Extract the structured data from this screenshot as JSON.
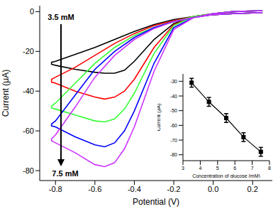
{
  "chart_data": [
    {
      "type": "line",
      "x_label": "Potential (V)",
      "y_label": "Current (μA)",
      "xlim": [
        -0.88,
        0.3
      ],
      "xticks": [
        -0.8,
        -0.6,
        -0.4,
        -0.2,
        {
          "value": 0,
          "label": "0.0"
        },
        0.2
      ],
      "ylim": [
        -85,
        3
      ],
      "yticks": [
        -80,
        -60,
        -40,
        -20,
        0
      ],
      "grid": false,
      "annotations": [
        "3.5 mM",
        "7.5 mM"
      ],
      "x": [
        0.25,
        0.1,
        0,
        -0.1,
        -0.2,
        -0.3,
        -0.4,
        -0.5,
        -0.6,
        -0.7,
        -0.8,
        -0.82,
        -0.82,
        -0.8,
        -0.7,
        -0.6,
        -0.55,
        -0.5,
        -0.45,
        -0.4,
        -0.3,
        -0.2,
        -0.1,
        0,
        0.1,
        0.25
      ],
      "series": [
        {
          "color": "#000000",
          "values": [
            -0.5,
            -1,
            -1.5,
            -2.5,
            -4,
            -6.5,
            -10,
            -14,
            -18,
            -21.5,
            -25,
            -25.5,
            -26.5,
            -27,
            -29,
            -30.5,
            -31,
            -31,
            -29.5,
            -25,
            -14,
            -6,
            -2.5,
            -1,
            0,
            0.5
          ]
        },
        {
          "color": "#ff0000",
          "values": [
            -0.5,
            -1,
            -1.5,
            -2.5,
            -4.5,
            -7,
            -11,
            -16,
            -22,
            -28,
            -33,
            -34,
            -35.5,
            -36,
            -40,
            -43,
            -44,
            -43,
            -40,
            -34,
            -18,
            -6.5,
            -2.5,
            -1,
            0,
            0.5
          ]
        },
        {
          "color": "#33ff33",
          "values": [
            -0.5,
            -1,
            -1.5,
            -2.5,
            -5,
            -8,
            -12,
            -18,
            -26,
            -36,
            -46,
            -47.5,
            -48.5,
            -49,
            -52,
            -55,
            -55.5,
            -54,
            -49,
            -41,
            -21,
            -7,
            -2.5,
            -1,
            0,
            0.5
          ]
        },
        {
          "color": "#0000ff",
          "values": [
            -0.5,
            -1,
            -1.5,
            -3,
            -5,
            -8,
            -13,
            -20,
            -29,
            -42,
            -55,
            -56.5,
            -57.5,
            -58,
            -63,
            -67,
            -68,
            -66,
            -60,
            -50,
            -26,
            -8,
            -3,
            -1,
            0,
            0.5
          ]
        },
        {
          "color": "#cc33ff",
          "values": [
            -0.5,
            -1,
            -1.5,
            -3,
            -5,
            -8.5,
            -14,
            -22,
            -33,
            -48,
            -62,
            -64,
            -65,
            -66,
            -71,
            -77,
            -78,
            -76,
            -69,
            -58,
            -30,
            -9,
            -3,
            -1,
            0,
            0.5
          ]
        }
      ]
    },
    {
      "type": "line",
      "x_label": "Concentration of glucose (mM)",
      "y_label": "Current (μA)",
      "xlim": [
        3,
        8
      ],
      "xticks": [
        3,
        4,
        5,
        6,
        7,
        8
      ],
      "ylim": [
        -84,
        -25
      ],
      "yticks": [
        -80,
        -70,
        -60,
        -50,
        -40,
        -30
      ],
      "grid": false,
      "x": [
        3.5,
        4.5,
        5.5,
        6.5,
        7.5
      ],
      "values": [
        -31,
        -44,
        -55,
        -68,
        -78
      ],
      "errors": [
        3,
        3,
        3,
        3,
        3
      ],
      "color": "#000000",
      "marker": "square"
    }
  ]
}
